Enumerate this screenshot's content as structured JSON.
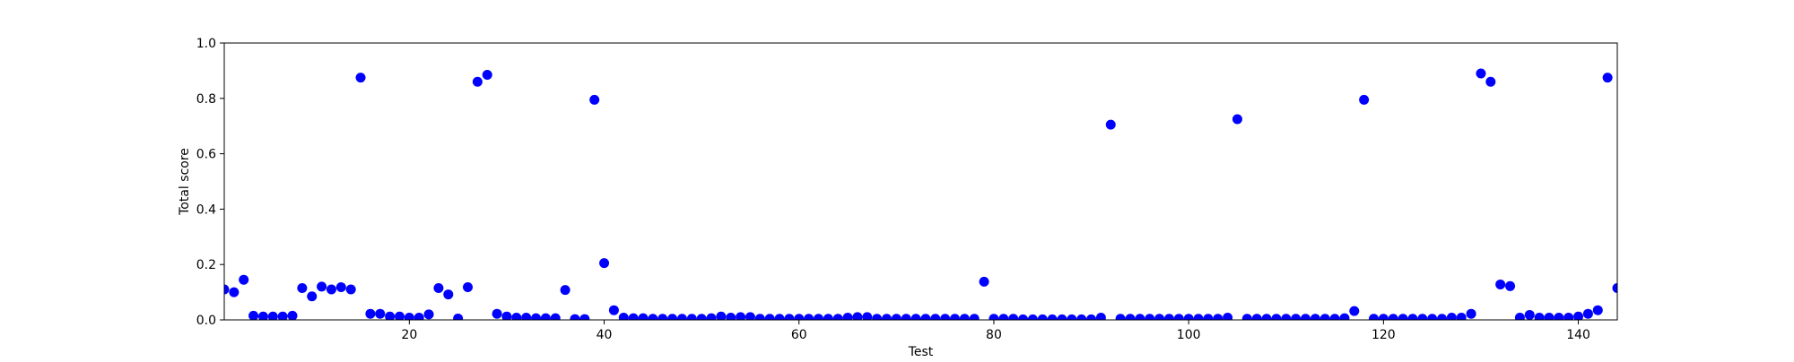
{
  "chart_data": {
    "type": "scatter",
    "title": "",
    "xlabel": "Test",
    "ylabel": "Total score",
    "xlim": [
      1,
      144
    ],
    "ylim": [
      0,
      1.0
    ],
    "xticks": [
      20,
      40,
      60,
      80,
      100,
      120,
      140
    ],
    "yticks": [
      0.0,
      0.2,
      0.4,
      0.6,
      0.8,
      1.0
    ],
    "xtick_labels": [
      "20",
      "40",
      "60",
      "80",
      "100",
      "120",
      "140"
    ],
    "ytick_labels": [
      "0.0",
      "0.2",
      "0.4",
      "0.6",
      "0.8",
      "1.0"
    ],
    "grid": false,
    "marker_color": "#0000ff",
    "series": [
      {
        "x": [
          1,
          2,
          3,
          4,
          5,
          6,
          7,
          8,
          9,
          10,
          11,
          12,
          13,
          14,
          15,
          16,
          17,
          18,
          19,
          20,
          21,
          22,
          23,
          24,
          25,
          26,
          27,
          28,
          29,
          30,
          31,
          32,
          33,
          34,
          35,
          36,
          37,
          38,
          39,
          40,
          41,
          42,
          43,
          44,
          45,
          46,
          47,
          48,
          49,
          50,
          51,
          52,
          53,
          54,
          55,
          56,
          57,
          58,
          59,
          60,
          61,
          62,
          63,
          64,
          65,
          66,
          67,
          68,
          69,
          70,
          71,
          72,
          73,
          74,
          75,
          76,
          77,
          78,
          79,
          80,
          81,
          82,
          83,
          84,
          85,
          86,
          87,
          88,
          89,
          90,
          91,
          92,
          93,
          94,
          95,
          96,
          97,
          98,
          99,
          100,
          101,
          102,
          103,
          104,
          105,
          106,
          107,
          108,
          109,
          110,
          111,
          112,
          113,
          114,
          115,
          116,
          117,
          118,
          119,
          120,
          121,
          122,
          123,
          124,
          125,
          126,
          127,
          128,
          129,
          130,
          131,
          132,
          133,
          134,
          135,
          136,
          137,
          138,
          139,
          140,
          141,
          142,
          143,
          144
        ],
        "y": [
          0.11,
          0.1,
          0.145,
          0.015,
          0.012,
          0.012,
          0.012,
          0.015,
          0.115,
          0.085,
          0.12,
          0.11,
          0.118,
          0.11,
          0.875,
          0.022,
          0.022,
          0.012,
          0.012,
          0.008,
          0.008,
          0.02,
          0.115,
          0.092,
          0.005,
          0.118,
          0.86,
          0.885,
          0.022,
          0.012,
          0.008,
          0.008,
          0.006,
          0.006,
          0.006,
          0.108,
          0.003,
          0.003,
          0.795,
          0.205,
          0.035,
          0.008,
          0.006,
          0.006,
          0.004,
          0.004,
          0.004,
          0.004,
          0.004,
          0.004,
          0.006,
          0.012,
          0.008,
          0.01,
          0.01,
          0.004,
          0.004,
          0.004,
          0.004,
          0.004,
          0.004,
          0.004,
          0.004,
          0.004,
          0.008,
          0.01,
          0.01,
          0.004,
          0.004,
          0.004,
          0.004,
          0.004,
          0.004,
          0.004,
          0.004,
          0.004,
          0.004,
          0.004,
          0.138,
          0.004,
          0.004,
          0.004,
          0.002,
          0.002,
          0.002,
          0.002,
          0.002,
          0.002,
          0.002,
          0.002,
          0.008,
          0.705,
          0.004,
          0.004,
          0.004,
          0.004,
          0.004,
          0.004,
          0.004,
          0.004,
          0.004,
          0.004,
          0.004,
          0.008,
          0.725,
          0.004,
          0.004,
          0.004,
          0.004,
          0.004,
          0.004,
          0.004,
          0.004,
          0.004,
          0.004,
          0.006,
          0.032,
          0.795,
          0.004,
          0.004,
          0.004,
          0.004,
          0.004,
          0.004,
          0.004,
          0.004,
          0.008,
          0.008,
          0.022,
          0.89,
          0.86,
          0.128,
          0.122,
          0.008,
          0.018,
          0.008,
          0.008,
          0.008,
          0.008,
          0.012,
          0.022,
          0.035,
          0.875,
          0.115
        ]
      }
    ]
  }
}
